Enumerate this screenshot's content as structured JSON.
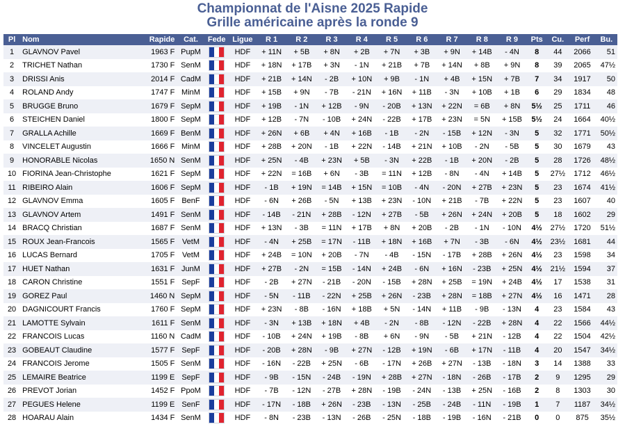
{
  "title": "Championnat de l'Aisne 2025 Rapide",
  "subtitle": "Grille américaine après la ronde 9",
  "flag_colors": [
    "#1a3d9c",
    "#ffffff",
    "#e0242f"
  ],
  "headers": [
    "Pl",
    "Nom",
    "Rapide",
    "Cat.",
    "Fede",
    "Ligue",
    "R 1",
    "R 2",
    "R 3",
    "R 4",
    "R 5",
    "R 6",
    "R 7",
    "R 8",
    "R 9",
    "Pts",
    "Cu.",
    "Perf",
    "Bu."
  ],
  "rows": [
    [
      "1",
      "GLAVNOV Pavel",
      "1963 F",
      "PupM",
      "HDF",
      "+ 11N",
      "+ 5B",
      "+ 8N",
      "+ 2B",
      "+ 7N",
      "+ 3B",
      "+ 9N",
      "+ 14B",
      "- 4N",
      "8",
      "44",
      "2066",
      "51"
    ],
    [
      "2",
      "TRICHET Nathan",
      "1730 F",
      "SenM",
      "HDF",
      "+ 18N",
      "+ 17B",
      "+ 3N",
      "- 1N",
      "+ 21B",
      "+ 7B",
      "+ 14N",
      "+ 8B",
      "+ 9N",
      "8",
      "39",
      "2065",
      "47½"
    ],
    [
      "3",
      "DRISSI Anis",
      "2014 F",
      "CadM",
      "HDF",
      "+ 21B",
      "+ 14N",
      "- 2B",
      "+ 10N",
      "+ 9B",
      "- 1N",
      "+ 4B",
      "+ 15N",
      "+ 7B",
      "7",
      "34",
      "1917",
      "50"
    ],
    [
      "4",
      "ROLAND Andy",
      "1747 F",
      "MinM",
      "HDF",
      "+ 15B",
      "+ 9N",
      "- 7B",
      "- 21N",
      "+ 16N",
      "+ 11B",
      "- 3N",
      "+ 10B",
      "+ 1B",
      "6",
      "29",
      "1834",
      "48"
    ],
    [
      "5",
      "BRUGGE Bruno",
      "1679 F",
      "SepM",
      "HDF",
      "+ 19B",
      "- 1N",
      "+ 12B",
      "- 9N",
      "- 20B",
      "+ 13N",
      "+ 22N",
      "= 6B",
      "+ 8N",
      "5½",
      "25",
      "1711",
      "46"
    ],
    [
      "6",
      "STEICHEN Daniel",
      "1800 F",
      "SepM",
      "HDF",
      "+ 12B",
      "- 7N",
      "- 10B",
      "+ 24N",
      "- 22B",
      "+ 17B",
      "+ 23N",
      "= 5N",
      "+ 15B",
      "5½",
      "24",
      "1664",
      "40½"
    ],
    [
      "7",
      "GRALLA Achille",
      "1669 F",
      "BenM",
      "HDF",
      "+ 26N",
      "+ 6B",
      "+ 4N",
      "+ 16B",
      "- 1B",
      "- 2N",
      "- 15B",
      "+ 12N",
      "- 3N",
      "5",
      "32",
      "1771",
      "50½"
    ],
    [
      "8",
      "VINCELET Augustin",
      "1666 F",
      "MinM",
      "HDF",
      "+ 28B",
      "+ 20N",
      "- 1B",
      "+ 22N",
      "- 14B",
      "+ 21N",
      "+ 10B",
      "- 2N",
      "- 5B",
      "5",
      "30",
      "1679",
      "43"
    ],
    [
      "9",
      "HONORABLE Nicolas",
      "1650 N",
      "SenM",
      "HDF",
      "+ 25N",
      "- 4B",
      "+ 23N",
      "+ 5B",
      "- 3N",
      "+ 22B",
      "- 1B",
      "+ 20N",
      "- 2B",
      "5",
      "28",
      "1726",
      "48½"
    ],
    [
      "10",
      "FIORINA Jean-Christophe",
      "1621 F",
      "SepM",
      "HDF",
      "+ 22N",
      "= 16B",
      "+ 6N",
      "- 3B",
      "= 11N",
      "+ 12B",
      "- 8N",
      "- 4N",
      "+ 14B",
      "5",
      "27½",
      "1712",
      "46½"
    ],
    [
      "11",
      "RIBEIRO Alain",
      "1606 F",
      "SepM",
      "HDF",
      "- 1B",
      "+ 19N",
      "= 14B",
      "+ 15N",
      "= 10B",
      "- 4N",
      "- 20N",
      "+ 27B",
      "+ 23N",
      "5",
      "23",
      "1674",
      "41½"
    ],
    [
      "12",
      "GLAVNOV Emma",
      "1605 F",
      "BenF",
      "HDF",
      "- 6N",
      "+ 26B",
      "- 5N",
      "+ 13B",
      "+ 23N",
      "- 10N",
      "+ 21B",
      "- 7B",
      "+ 22N",
      "5",
      "23",
      "1607",
      "40"
    ],
    [
      "13",
      "GLAVNOV Artem",
      "1491 F",
      "SenM",
      "HDF",
      "- 14B",
      "- 21N",
      "+ 28B",
      "- 12N",
      "+ 27B",
      "- 5B",
      "+ 26N",
      "+ 24N",
      "+ 20B",
      "5",
      "18",
      "1602",
      "29"
    ],
    [
      "14",
      "BRACQ Christian",
      "1687 F",
      "SenM",
      "HDF",
      "+ 13N",
      "- 3B",
      "= 11N",
      "+ 17B",
      "+ 8N",
      "+ 20B",
      "- 2B",
      "- 1N",
      "- 10N",
      "4½",
      "27½",
      "1720",
      "51½"
    ],
    [
      "15",
      "ROUX Jean-Francois",
      "1565 F",
      "VetM",
      "HDF",
      "- 4N",
      "+ 25B",
      "= 17N",
      "- 11B",
      "+ 18N",
      "+ 16B",
      "+ 7N",
      "- 3B",
      "- 6N",
      "4½",
      "23½",
      "1681",
      "44"
    ],
    [
      "16",
      "LUCAS Bernard",
      "1705 F",
      "VetM",
      "HDF",
      "+ 24B",
      "= 10N",
      "+ 20B",
      "- 7N",
      "- 4B",
      "- 15N",
      "- 17B",
      "+ 28B",
      "+ 26N",
      "4½",
      "23",
      "1598",
      "34"
    ],
    [
      "17",
      "HUET Nathan",
      "1631 F",
      "JunM",
      "HDF",
      "+ 27B",
      "- 2N",
      "= 15B",
      "- 14N",
      "+ 24B",
      "- 6N",
      "+ 16N",
      "- 23B",
      "+ 25N",
      "4½",
      "21½",
      "1594",
      "37"
    ],
    [
      "18",
      "CARON Christine",
      "1551 F",
      "SepF",
      "HDF",
      "- 2B",
      "+ 27N",
      "- 21B",
      "- 20N",
      "- 15B",
      "+ 28N",
      "+ 25B",
      "= 19N",
      "+ 24B",
      "4½",
      "17",
      "1538",
      "31"
    ],
    [
      "19",
      "GOREZ Paul",
      "1460 N",
      "SepM",
      "HDF",
      "- 5N",
      "- 11B",
      "- 22N",
      "+ 25B",
      "+ 26N",
      "- 23B",
      "+ 28N",
      "= 18B",
      "+ 27N",
      "4½",
      "16",
      "1471",
      "28"
    ],
    [
      "20",
      "DAGNICOURT Francis",
      "1760 F",
      "SepM",
      "HDF",
      "+ 23N",
      "- 8B",
      "- 16N",
      "+ 18B",
      "+ 5N",
      "- 14N",
      "+ 11B",
      "- 9B",
      "- 13N",
      "4",
      "23",
      "1584",
      "43"
    ],
    [
      "21",
      "LAMOTTE Sylvain",
      "1611 F",
      "SenM",
      "HDF",
      "- 3N",
      "+ 13B",
      "+ 18N",
      "+ 4B",
      "- 2N",
      "- 8B",
      "- 12N",
      "- 22B",
      "+ 28N",
      "4",
      "22",
      "1566",
      "44½"
    ],
    [
      "22",
      "FRANCOIS Lucas",
      "1160 N",
      "CadM",
      "HDF",
      "- 10B",
      "+ 24N",
      "+ 19B",
      "- 8B",
      "+ 6N",
      "- 9N",
      "- 5B",
      "+ 21N",
      "- 12B",
      "4",
      "22",
      "1504",
      "42½"
    ],
    [
      "23",
      "GOBEAUT Claudine",
      "1577 F",
      "SepF",
      "HDF",
      "- 20B",
      "+ 28N",
      "- 9B",
      "+ 27N",
      "- 12B",
      "+ 19N",
      "- 6B",
      "+ 17N",
      "- 11B",
      "4",
      "20",
      "1547",
      "34½"
    ],
    [
      "24",
      "FRANCOIS Jerome",
      "1505 F",
      "SenM",
      "HDF",
      "- 16N",
      "- 22B",
      "+ 25N",
      "- 6B",
      "- 17N",
      "+ 26B",
      "+ 27N",
      "- 13B",
      "- 18N",
      "3",
      "14",
      "1388",
      "33"
    ],
    [
      "25",
      "LEMAIRE Beatrice",
      "1199 E",
      "SepF",
      "HDF",
      "- 9B",
      "- 15N",
      "- 24B",
      "- 19N",
      "+ 28B",
      "+ 27N",
      "- 18N",
      "- 26B",
      "- 17B",
      "2",
      "9",
      "1295",
      "29"
    ],
    [
      "26",
      "PREVOT Jorian",
      "1452 F",
      "PpoM",
      "HDF",
      "- 7B",
      "- 12N",
      "- 27B",
      "+ 28N",
      "- 19B",
      "- 24N",
      "- 13B",
      "+ 25N",
      "- 16B",
      "2",
      "8",
      "1303",
      "30"
    ],
    [
      "27",
      "PEGUES Helene",
      "1199 E",
      "SenF",
      "HDF",
      "- 17N",
      "- 18B",
      "+ 26N",
      "- 23B",
      "- 13N",
      "- 25B",
      "- 24B",
      "- 11N",
      "- 19B",
      "1",
      "7",
      "1187",
      "34½"
    ],
    [
      "28",
      "HOARAU Alain",
      "1434 F",
      "SenM",
      "HDF",
      "- 8N",
      "- 23B",
      "- 13N",
      "- 26B",
      "- 25N",
      "- 18B",
      "- 19B",
      "- 16N",
      "- 21B",
      "0",
      "0",
      "875",
      "35½"
    ]
  ]
}
